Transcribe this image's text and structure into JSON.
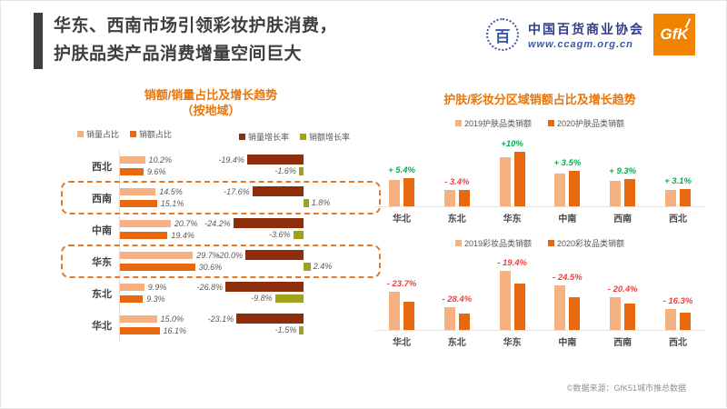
{
  "slide": {
    "title_line1": "华东、西南市场引领彩妆护肤消费，",
    "title_line2": "护肤品类产品消费增量空间巨大"
  },
  "logos": {
    "assoc_seal": "百",
    "assoc_name": "中国百货商业协会",
    "assoc_url": "www.ccagm.org.cn",
    "gfk": "GfK"
  },
  "footer": {
    "source": "©数据来源：GfK51城市推总数据"
  },
  "colors": {
    "light-orange": "#F6B183",
    "dark-orange": "#E8680F",
    "dark-red": "#8E2D0C",
    "olive": "#9EA31A",
    "accent-orange": "#E87722",
    "title-gray": "#3F3F3F",
    "positive-green": "#00B050",
    "negative-red": "#F03E3E",
    "gfk-orange": "#F08300",
    "assoc-blue": "#3A57A7"
  },
  "left_chart": {
    "title_line1": "销额/销量占比及增长趋势",
    "title_line2": "（按地域）",
    "legend": {
      "vol_share": "销量占比",
      "rev_share": "销额占比",
      "vol_growth": "销量增长率",
      "rev_growth": "销额增长率"
    },
    "rows": [
      {
        "region": "西北",
        "vol": "10.2%",
        "rev": "9.6%",
        "vol_g": "-19.4%",
        "rev_g": "-1.6%"
      },
      {
        "region": "西南",
        "vol": "14.5%",
        "rev": "15.1%",
        "vol_g": "-17.6%",
        "rev_g": "1.8%"
      },
      {
        "region": "中南",
        "vol": "20.7%",
        "rev": "19.4%",
        "vol_g": "-24.2%",
        "rev_g": "-3.6%"
      },
      {
        "region": "华东",
        "vol": "29.7%",
        "rev": "30.6%",
        "vol_g": "-20.0%",
        "rev_g": "2.4%"
      },
      {
        "region": "东北",
        "vol": "9.9%",
        "rev": "9.3%",
        "vol_g": "-26.8%",
        "rev_g": "-9.8%"
      },
      {
        "region": "华北",
        "vol": "15.0%",
        "rev": "16.1%",
        "vol_g": "-23.1%",
        "rev_g": "-1.5%"
      }
    ]
  },
  "right_charts": {
    "title": "护肤/彩妆分区域销额占比及增长趋势",
    "skincare": {
      "legend_2019": "2019护肤品类销额",
      "legend_2020": "2020护肤品类销额",
      "groups": [
        {
          "cat": "华北",
          "g": "+ 5.4%",
          "v19": 15.5,
          "v20": 17
        },
        {
          "cat": "东北",
          "g": "- 3.4%",
          "v19": 10,
          "v20": 9.6
        },
        {
          "cat": "华东",
          "g": "+10%",
          "v19": 29,
          "v20": 32.5
        },
        {
          "cat": "中南",
          "g": "+ 3.5%",
          "v19": 19.5,
          "v20": 21
        },
        {
          "cat": "西南",
          "g": "+ 9.3%",
          "v19": 15,
          "v20": 16.5
        },
        {
          "cat": "西北",
          "g": "+ 3.1%",
          "v19": 9.8,
          "v20": 10.3
        }
      ]
    },
    "makeup": {
      "legend_2019": "2019彩妆品类销额",
      "legend_2020": "2020彩妆品类销额",
      "groups": [
        {
          "cat": "华北",
          "g": "- 23.7%",
          "v19": 16,
          "v20": 11.8
        },
        {
          "cat": "东北",
          "g": "- 28.4%",
          "v19": 9.5,
          "v20": 7
        },
        {
          "cat": "华东",
          "g": "- 19.4%",
          "v19": 25,
          "v20": 19.5
        },
        {
          "cat": "中南",
          "g": "- 24.5%",
          "v19": 19,
          "v20": 14
        },
        {
          "cat": "西南",
          "g": "- 20.4%",
          "v19": 14,
          "v20": 11
        },
        {
          "cat": "西北",
          "g": "- 16.3%",
          "v19": 8.8,
          "v20": 7.2
        }
      ]
    }
  },
  "chart_data": [
    {
      "type": "bar",
      "orientation": "horizontal",
      "title": "销额/销量占比及增长趋势（按地域）",
      "categories": [
        "西北",
        "西南",
        "中南",
        "华东",
        "东北",
        "华北"
      ],
      "series": [
        {
          "name": "销量占比",
          "values": [
            10.2,
            14.5,
            20.7,
            29.7,
            9.9,
            15.0
          ]
        },
        {
          "name": "销额占比",
          "values": [
            9.6,
            15.1,
            19.4,
            30.6,
            9.3,
            16.1
          ]
        },
        {
          "name": "销量增长率",
          "values": [
            -19.4,
            -17.6,
            -24.2,
            -20.0,
            -26.8,
            -23.1
          ]
        },
        {
          "name": "销额增长率",
          "values": [
            -1.6,
            1.8,
            -3.6,
            2.4,
            -9.8,
            -1.5
          ]
        }
      ],
      "highlighted_categories": [
        "西南",
        "华东"
      ],
      "legend_position": "top",
      "grid": false
    },
    {
      "type": "bar",
      "title": "护肤分区域销额占比及增长趋势",
      "categories": [
        "华北",
        "东北",
        "华东",
        "中南",
        "西南",
        "西北"
      ],
      "series": [
        {
          "name": "2019护肤品类销额",
          "values": [
            15.5,
            10,
            29,
            19.5,
            15,
            9.8
          ]
        },
        {
          "name": "2020护肤品类销额",
          "values": [
            17,
            9.6,
            32.5,
            21,
            16.5,
            10.3
          ]
        }
      ],
      "growth_labels": [
        "+ 5.4%",
        "- 3.4%",
        "+10%",
        "+ 3.5%",
        "+ 9.3%",
        "+ 3.1%"
      ],
      "legend_position": "top",
      "grid": false
    },
    {
      "type": "bar",
      "title": "彩妆分区域销额占比及增长趋势",
      "categories": [
        "华北",
        "东北",
        "华东",
        "中南",
        "西南",
        "西北"
      ],
      "series": [
        {
          "name": "2019彩妆品类销额",
          "values": [
            16,
            9.5,
            25,
            19,
            14,
            8.8
          ]
        },
        {
          "name": "2020彩妆品类销额",
          "values": [
            11.8,
            7,
            19.5,
            14,
            11,
            7.2
          ]
        }
      ],
      "growth_labels": [
        "- 23.7%",
        "- 28.4%",
        "- 19.4%",
        "- 24.5%",
        "- 20.4%",
        "- 16.3%"
      ],
      "legend_position": "top",
      "grid": false
    }
  ]
}
